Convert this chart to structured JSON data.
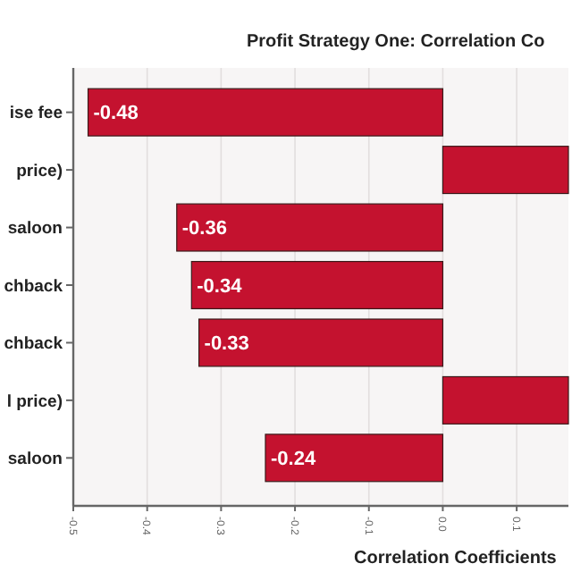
{
  "chart_data": {
    "type": "bar",
    "orientation": "horizontal",
    "title": "Profit Strategy One: Correlation Co",
    "xlabel": "Correlation Coefficients",
    "categories": [
      "ise fee",
      "price)",
      "saloon",
      "chback",
      "chback",
      "l price)",
      "saloon"
    ],
    "values": [
      -0.48,
      0.17,
      -0.36,
      -0.34,
      -0.33,
      0.17,
      -0.24
    ],
    "value_labels": [
      "-0.48",
      null,
      "-0.36",
      "-0.34",
      "-0.33",
      null,
      "-0.24"
    ],
    "color": "#c4122f",
    "xlim": [
      -0.5,
      0.17
    ],
    "xticks": [
      -0.5,
      -0.4,
      -0.3,
      -0.2,
      -0.1,
      {
        "value": 0,
        "label": "0.0"
      },
      0.1
    ],
    "grid": "x"
  }
}
